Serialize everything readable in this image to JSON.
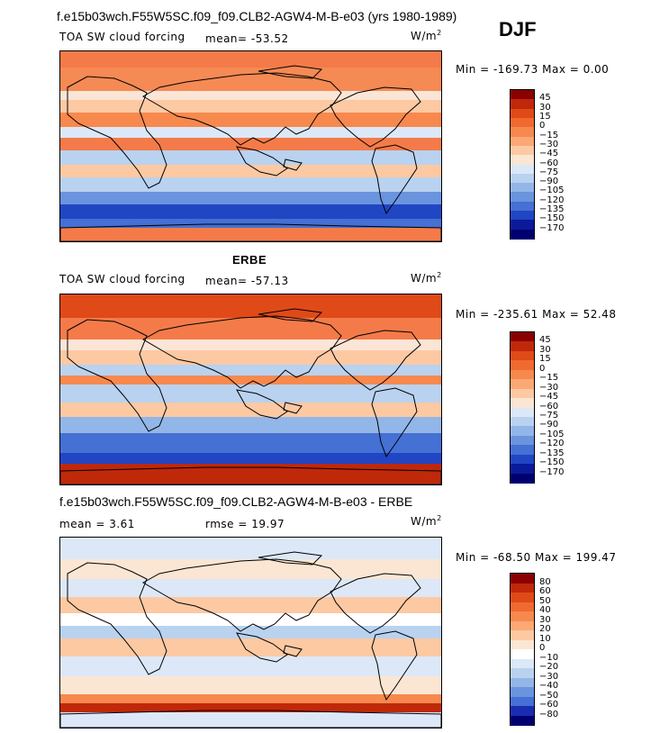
{
  "main_title": "f.e15b03wch.F55W5SC.f09_f09.CLB2-AGW4-M-B-e03 (yrs 1980-1989)",
  "season": "DJF",
  "panels": [
    {
      "heading": "",
      "field": "TOA SW cloud forcing",
      "stat1": "mean= -53.52",
      "stat2": "",
      "units": "W/m",
      "minmax": "Min = -169.73  Max =   0.00",
      "levels": [
        "45",
        "30",
        "15",
        "0",
        "−15",
        "−30",
        "−45",
        "−60",
        "−75",
        "−90",
        "−105",
        "−120",
        "−135",
        "−150",
        "−170"
      ],
      "colors": [
        "#8b0000",
        "#c0280a",
        "#e04a18",
        "#f06a30",
        "#f7894e",
        "#fba875",
        "#fdc9a3",
        "#fbe6d3",
        "#dce8f8",
        "#b9d2f0",
        "#93b6e8",
        "#6b94de",
        "#4570d4",
        "#2046c4",
        "#0a1a9a",
        "#000070"
      ]
    },
    {
      "heading": "ERBE",
      "field": "TOA SW cloud forcing",
      "stat1": "mean= -57.13",
      "stat2": "",
      "units": "W/m",
      "minmax": "Min = -235.61  Max =  52.48",
      "levels": [
        "45",
        "30",
        "15",
        "0",
        "−15",
        "−30",
        "−45",
        "−60",
        "−75",
        "−90",
        "−105",
        "−120",
        "−135",
        "−150",
        "−170"
      ],
      "colors": [
        "#8b0000",
        "#c0280a",
        "#e04a18",
        "#f06a30",
        "#f7894e",
        "#fba875",
        "#fdc9a3",
        "#fbe6d3",
        "#dce8f8",
        "#b9d2f0",
        "#93b6e8",
        "#6b94de",
        "#4570d4",
        "#2046c4",
        "#0a1a9a",
        "#000070"
      ]
    },
    {
      "heading": "f.e15b03wch.F55W5SC.f09_f09.CLB2-AGW4-M-B-e03 - ERBE",
      "field": "",
      "stat1": "mean =   3.61",
      "stat2": "rmse =  19.97",
      "units": "W/m",
      "minmax": "Min = -68.50  Max = 199.47",
      "levels": [
        "80",
        "60",
        "50",
        "40",
        "30",
        "20",
        "10",
        "0",
        "−10",
        "−20",
        "−30",
        "−40",
        "−50",
        "−60",
        "−80"
      ],
      "colors": [
        "#8b0000",
        "#c0280a",
        "#e04a18",
        "#f06a30",
        "#f7894e",
        "#fba875",
        "#fdc9a3",
        "#fbe6d3",
        "#ffffff",
        "#dce8f8",
        "#b9d2f0",
        "#93b6e8",
        "#6b94de",
        "#4570d4",
        "#1a2cb0",
        "#000070"
      ]
    }
  ],
  "units_exponent": "2"
}
